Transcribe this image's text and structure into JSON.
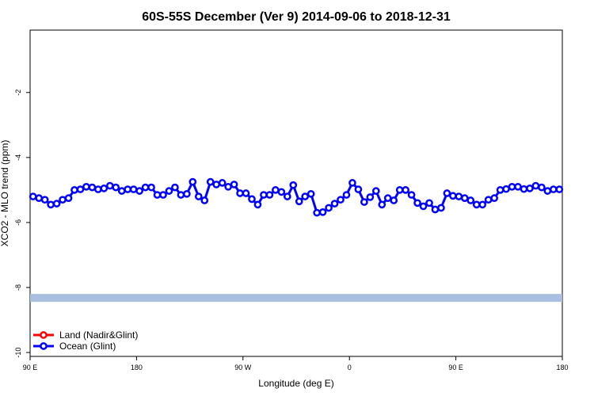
{
  "chart_data": {
    "type": "line",
    "title": "60S-55S December (Ver 9)   2014-09-06 to 2018-12-31",
    "x_label": "Longitude (deg E)",
    "y_label": "XCO2 - MLO trend (ppm)",
    "xlim": [
      90,
      540
    ],
    "ylim": [
      -10.12,
      -0.08
    ],
    "xticks": [
      {
        "value": 90,
        "label": "90 E"
      },
      {
        "value": 180,
        "label": "180"
      },
      {
        "value": 270,
        "label": "90 W"
      },
      {
        "value": 360,
        "label": "0"
      },
      {
        "value": 450,
        "label": "90 E"
      },
      {
        "value": 540,
        "label": "180"
      }
    ],
    "yticks": [
      -2,
      -4,
      -6,
      -8,
      -10
    ],
    "grid": false,
    "legend_position": "lower-left",
    "legend": [
      {
        "name": "Land (Nadir&Glint)",
        "color": "#ff0000"
      },
      {
        "name": "Ocean (Glint)",
        "color": "#0000ff"
      }
    ],
    "reference_band": {
      "value": -8.32,
      "color": "#a8bfe0"
    },
    "x": [
      92.5,
      97.5,
      102.5,
      107.5,
      112.5,
      117.5,
      122.5,
      127.5,
      132.5,
      137.5,
      142.5,
      147.5,
      152.5,
      157.5,
      162.5,
      167.5,
      172.5,
      177.5,
      182.5,
      187.5,
      192.5,
      197.5,
      202.5,
      207.5,
      212.5,
      217.5,
      222.5,
      227.5,
      232.5,
      237.5,
      242.5,
      247.5,
      252.5,
      257.5,
      262.5,
      267.5,
      272.5,
      277.5,
      282.5,
      287.5,
      292.5,
      297.5,
      302.5,
      307.5,
      312.5,
      317.5,
      322.5,
      327.5,
      332.5,
      337.5,
      342.5,
      347.5,
      352.5,
      357.5,
      362.5,
      367.5,
      372.5,
      377.5,
      382.5,
      387.5,
      392.5,
      397.5,
      402.5,
      407.5,
      412.5,
      417.5,
      422.5,
      427.5,
      432.5,
      437.5,
      442.5,
      447.5,
      452.5,
      457.5,
      462.5,
      467.5,
      472.5,
      477.5,
      482.5,
      487.5,
      492.5,
      497.5,
      502.5,
      507.5,
      512.5,
      517.5,
      522.5,
      527.5,
      532.5,
      537.5
    ],
    "series": [
      {
        "name": "Ocean (Glint)",
        "color": "#0000ff",
        "values": [
          -5.2,
          -5.25,
          -5.3,
          -5.45,
          -5.42,
          -5.3,
          -5.25,
          -5.0,
          -4.98,
          -4.9,
          -4.92,
          -4.98,
          -4.95,
          -4.87,
          -4.92,
          -5.03,
          -4.98,
          -4.98,
          -5.03,
          -4.92,
          -4.92,
          -5.15,
          -5.15,
          -5.03,
          -4.92,
          -5.15,
          -5.12,
          -4.75,
          -5.2,
          -5.32,
          -4.75,
          -4.83,
          -4.78,
          -4.9,
          -4.83,
          -5.1,
          -5.1,
          -5.28,
          -5.45,
          -5.15,
          -5.15,
          -5.0,
          -5.06,
          -5.2,
          -4.85,
          -5.35,
          -5.2,
          -5.12,
          -5.7,
          -5.68,
          -5.55,
          -5.42,
          -5.3,
          -5.15,
          -4.78,
          -4.98,
          -5.37,
          -5.22,
          -5.03,
          -5.45,
          -5.25,
          -5.32,
          -5.0,
          -5.0,
          -5.15,
          -5.4,
          -5.5,
          -5.4,
          -5.6,
          -5.55,
          -5.1,
          -5.18,
          -5.2,
          -5.25,
          -5.32,
          -5.45,
          -5.45,
          -5.3,
          -5.25,
          -5.0,
          -4.97,
          -4.9,
          -4.9,
          -4.97,
          -4.95,
          -4.87,
          -4.92,
          -5.03,
          -4.98,
          -4.98
        ]
      }
    ]
  }
}
